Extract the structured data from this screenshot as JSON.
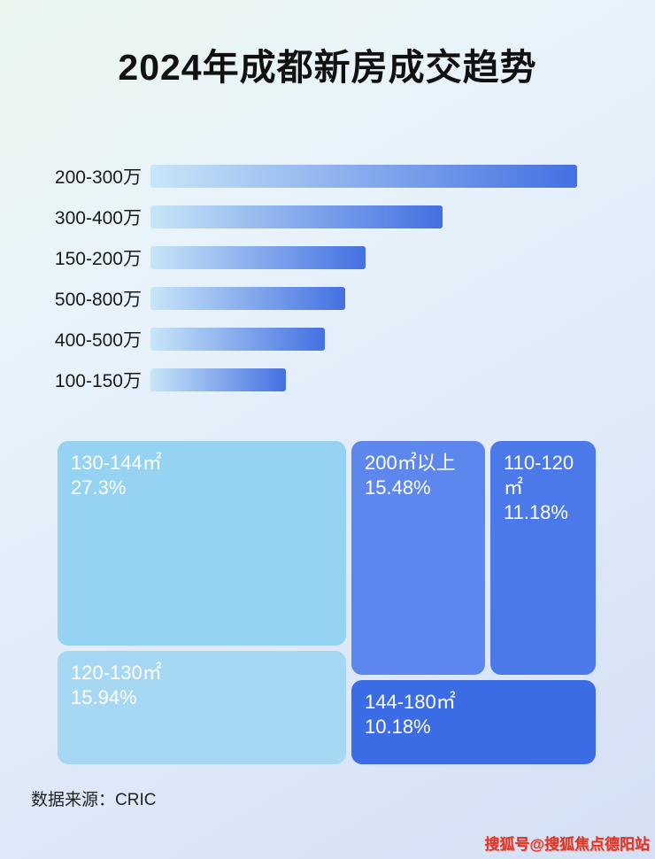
{
  "title": "2024年成都新房成交趋势",
  "footer": {
    "source": "数据来源：CRIC"
  },
  "watermark": "搜狐号@搜狐焦点德阳站",
  "colors": {
    "bar_gradient_start": "#c8e6f8",
    "bar_gradient_end": "#4470e2",
    "title_text": "#111111",
    "treemap_text": "#ffffff",
    "watermark_text": "#d8382c"
  },
  "chart_data": [
    {
      "type": "bar",
      "orientation": "horizontal",
      "categories": [
        "200-300万",
        "300-400万",
        "150-200万",
        "500-800万",
        "400-500万",
        "100-150万"
      ],
      "values": [
        482,
        330,
        243,
        220,
        197,
        153
      ],
      "value_note": "no numeric axis or data labels shown; values are relative bar lengths in px",
      "xlabel": "",
      "ylabel": "",
      "legend": "none",
      "grid": false
    },
    {
      "type": "treemap",
      "items": [
        {
          "label": "130-144㎡",
          "value": "27.3%",
          "color": "#96d2f1"
        },
        {
          "label": "120-130㎡",
          "value": "15.94%",
          "color": "#a6d8f3"
        },
        {
          "label": "200㎡以上",
          "value": "15.48%",
          "color": "#5d87ec"
        },
        {
          "label": "110-120㎡",
          "value": "11.18%",
          "color": "#4c79ea"
        },
        {
          "label": "144-180㎡",
          "value": "10.18%",
          "color": "#3c6be6"
        }
      ]
    }
  ]
}
